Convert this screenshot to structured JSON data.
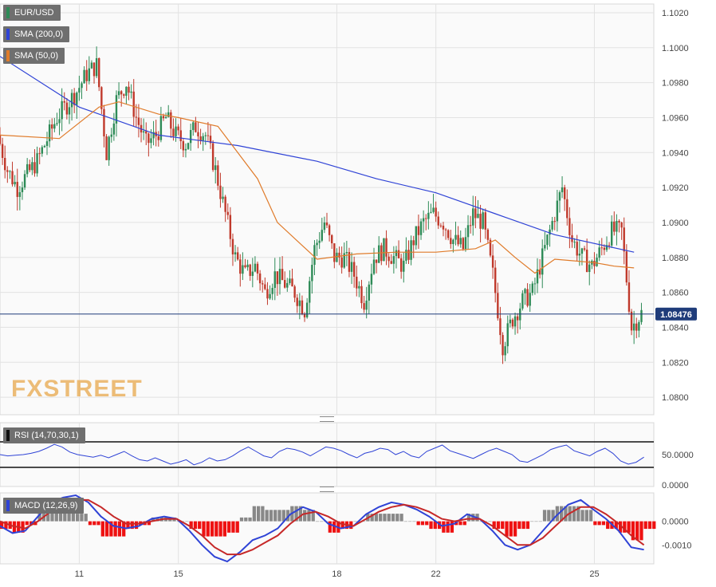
{
  "chart_data": [
    {
      "type": "candlestick",
      "symbol": "EUR/USD",
      "overlays": [
        {
          "name": "SMA (200,0)",
          "color": "#2f43d6",
          "x": [
            0,
            4,
            8,
            12,
            16,
            19,
            22,
            25,
            28,
            32
          ],
          "values": [
            1.0995,
            1.0966,
            1.095,
            1.0944,
            1.0935,
            1.0925,
            1.0917,
            1.0905,
            1.0893,
            1.0883
          ]
        },
        {
          "name": "SMA (50,0)",
          "color": "#e07b2a",
          "x": [
            0,
            3,
            5,
            6,
            8,
            9,
            11,
            13,
            14,
            16,
            18,
            20,
            22,
            24,
            25,
            26,
            27,
            28,
            29,
            30,
            31,
            32
          ],
          "values": [
            1.095,
            1.0948,
            1.0966,
            1.0969,
            1.0962,
            1.096,
            1.0955,
            1.0925,
            1.09,
            1.0879,
            1.0882,
            1.0883,
            1.0883,
            1.0885,
            1.089,
            1.088,
            1.0871,
            1.0879,
            1.0878,
            1.0877,
            1.0875,
            1.0874
          ]
        }
      ],
      "y_ticks": [
        "1.0800",
        "1.0820",
        "1.0840",
        "1.0860",
        "1.0880",
        "1.0900",
        "1.0920",
        "1.0940",
        "1.0960",
        "1.0980",
        "1.1000",
        "1.1020"
      ],
      "ylim": [
        1.079,
        1.1025
      ],
      "x_ticks": [
        {
          "label": "11",
          "x": 4
        },
        {
          "label": "15",
          "x": 9
        },
        {
          "label": "18",
          "x": 17
        },
        {
          "label": "22",
          "x": 22
        },
        {
          "label": "25",
          "x": 30
        }
      ],
      "xlim": [
        0,
        33
      ],
      "current_price": "1.08476",
      "current_value": 1.08476,
      "price_path": {
        "x": [
          0,
          0.5,
          1,
          2,
          3,
          4,
          4.5,
          5,
          5.5,
          6,
          6.5,
          7,
          7.5,
          8,
          8.5,
          9,
          9.5,
          10,
          10.5,
          11,
          11.5,
          12,
          12.5,
          13,
          13.5,
          14,
          14.5,
          15,
          15.5,
          16,
          16.5,
          17,
          17.5,
          18,
          18.5,
          19,
          19.5,
          20,
          20.5,
          21,
          21.5,
          22,
          22.5,
          23,
          23.5,
          24,
          24.5,
          25,
          25.5,
          26,
          26.5,
          27,
          27.5,
          28,
          28.5,
          29,
          29.5,
          30,
          30.5,
          31,
          31.5,
          32,
          32.5
        ],
        "values": [
          1.095,
          1.093,
          1.092,
          1.0935,
          1.096,
          1.0975,
          1.0985,
          1.099,
          1.094,
          1.097,
          1.098,
          1.096,
          1.0945,
          1.095,
          1.096,
          1.095,
          1.0945,
          1.0955,
          1.095,
          1.093,
          1.0905,
          1.088,
          1.087,
          1.0875,
          1.086,
          1.087,
          1.0865,
          1.086,
          1.085,
          1.0885,
          1.09,
          1.088,
          1.088,
          1.087,
          1.0855,
          1.088,
          1.0885,
          1.088,
          1.0875,
          1.089,
          1.09,
          1.0905,
          1.09,
          1.089,
          1.0885,
          1.0905,
          1.09,
          1.087,
          1.083,
          1.0845,
          1.0855,
          1.086,
          1.088,
          1.09,
          1.092,
          1.089,
          1.088,
          1.0875,
          1.0885,
          1.0895,
          1.0895,
          1.084,
          1.0848
        ]
      }
    },
    {
      "type": "line",
      "label": "RSI (14,70,30,1)",
      "y_ticks": [
        "50.0000",
        "0.0000"
      ],
      "levels": [
        70,
        30
      ],
      "ylim": [
        0,
        100
      ],
      "values": [
        50,
        48,
        49,
        50,
        52,
        55,
        60,
        66,
        62,
        54,
        50,
        48,
        46,
        49,
        45,
        50,
        55,
        48,
        42,
        40,
        45,
        40,
        35,
        38,
        42,
        34,
        38,
        45,
        40,
        42,
        48,
        56,
        62,
        55,
        48,
        45,
        55,
        60,
        58,
        54,
        48,
        55,
        62,
        60,
        56,
        50,
        45,
        52,
        55,
        60,
        58,
        50,
        55,
        48,
        45,
        55,
        60,
        65,
        56,
        52,
        48,
        44,
        50,
        56,
        60,
        55,
        50,
        40,
        38,
        44,
        50,
        58,
        62,
        65,
        56,
        52,
        48,
        55,
        60,
        52,
        40,
        35,
        38,
        46
      ]
    },
    {
      "type": "bar",
      "label": "MACD (12,26,9)",
      "y_ticks": [
        "0.0000",
        "-0.0010"
      ],
      "ylim": [
        -0.0018,
        0.0012
      ],
      "macd": [
        -0.0002,
        -0.0005,
        -0.0004,
        0.0002,
        0.0008,
        0.001,
        0.0011,
        0.0008,
        0.0002,
        -0.0002,
        -0.0003,
        -0.0002,
        0.0001,
        0.0002,
        0.0001,
        -0.0004,
        -0.001,
        -0.0015,
        -0.0017,
        -0.0013,
        -0.0008,
        -0.0006,
        -0.0003,
        0.0003,
        0.0006,
        0.0004,
        -0.0001,
        -0.0003,
        -0.0002,
        0.0003,
        0.0006,
        0.0008,
        0.0007,
        0.0005,
        0.0002,
        -0.0002,
        -0.0001,
        0.0003,
        0.0001,
        -0.0004,
        -0.001,
        -0.0012,
        -0.001,
        -0.0004,
        0.0002,
        0.0007,
        0.0009,
        0.0005,
        0.0001,
        -0.0004,
        -0.0011,
        -0.0012
      ],
      "signal": [
        0.0,
        -0.0002,
        -0.0003,
        0.0,
        0.0004,
        0.0007,
        0.0009,
        0.0009,
        0.0006,
        0.0002,
        -0.0001,
        -0.0001,
        0.0,
        0.0001,
        0.0001,
        -0.0002,
        -0.0006,
        -0.0011,
        -0.0014,
        -0.0014,
        -0.0012,
        -0.0009,
        -0.0006,
        -0.0001,
        0.0003,
        0.0004,
        0.0002,
        -0.0001,
        -0.0002,
        0.0001,
        0.0004,
        0.0006,
        0.0007,
        0.0006,
        0.0004,
        0.0001,
        0.0,
        0.0001,
        0.0001,
        -0.0002,
        -0.0006,
        -0.001,
        -0.001,
        -0.0007,
        -0.0002,
        0.0003,
        0.0006,
        0.0006,
        0.0003,
        -0.0001,
        -0.0006,
        -0.001
      ],
      "macd_color": "#2f43d6",
      "signal_color": "#c62828",
      "pos_bar_color": "#888888",
      "neg_bar_color": "#ee1111"
    }
  ],
  "legends": {
    "symbol": "EUR/USD",
    "sma200": "SMA (200,0)",
    "sma50": "SMA (50,0)",
    "rsi": "RSI (14,70,30,1)",
    "macd": "MACD (12,26,9)"
  },
  "watermark": "FXSTREET",
  "colors": {
    "up": "#2e8b57",
    "down": "#c0392b",
    "sma200": "#2f43d6",
    "sma50": "#e07b2a",
    "price_tag": "#1f3c7a",
    "grid": "#e2e2e2"
  }
}
